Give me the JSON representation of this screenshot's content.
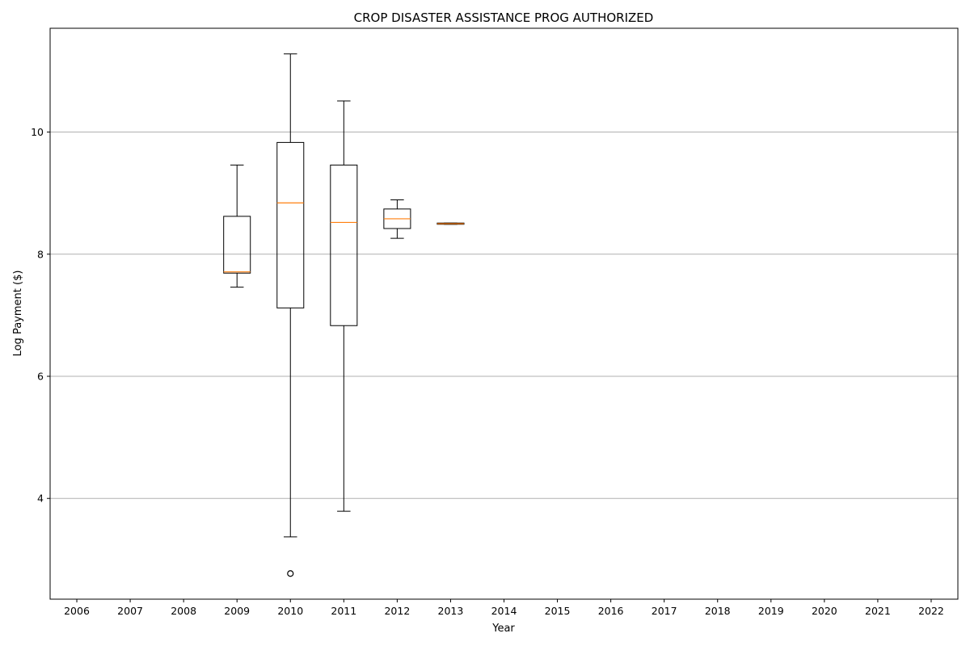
{
  "chart_data": {
    "type": "boxplot",
    "title": "CROP DISASTER ASSISTANCE PROG AUTHORIZED",
    "xlabel": "Year",
    "ylabel": "Log Payment ($)",
    "categories": [
      "2006",
      "2007",
      "2008",
      "2009",
      "2010",
      "2011",
      "2012",
      "2013",
      "2014",
      "2015",
      "2016",
      "2017",
      "2018",
      "2019",
      "2020",
      "2021",
      "2022"
    ],
    "ylim": [
      2.35,
      11.7
    ],
    "yticks": [
      4,
      6,
      8,
      10
    ],
    "grid": "horizontal",
    "boxes": [
      {
        "category": "2009",
        "whisker_low": 7.46,
        "q1": 7.69,
        "median": 7.71,
        "q3": 8.62,
        "whisker_high": 9.46,
        "outliers": []
      },
      {
        "category": "2010",
        "whisker_low": 3.37,
        "q1": 7.12,
        "median": 8.84,
        "q3": 9.83,
        "whisker_high": 11.28,
        "outliers": [
          2.77
        ]
      },
      {
        "category": "2011",
        "whisker_low": 3.79,
        "q1": 6.83,
        "median": 8.52,
        "q3": 9.46,
        "whisker_high": 10.51,
        "outliers": []
      },
      {
        "category": "2012",
        "whisker_low": 8.26,
        "q1": 8.42,
        "median": 8.58,
        "q3": 8.74,
        "whisker_high": 8.89,
        "outliers": []
      },
      {
        "category": "2013",
        "whisker_low": 8.49,
        "q1": 8.49,
        "median": 8.5,
        "q3": 8.51,
        "whisker_high": 8.51,
        "outliers": []
      }
    ],
    "colors": {
      "box": "#000000",
      "median": "#ff7f0e",
      "grid": "#b0b0b0"
    }
  }
}
